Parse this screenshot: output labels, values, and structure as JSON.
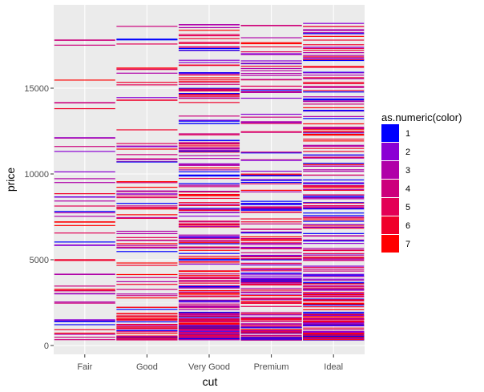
{
  "chart_data": {
    "type": "tile",
    "xlabel": "cut",
    "ylabel": "price",
    "categories": [
      "Fair",
      "Good",
      "Very Good",
      "Premium",
      "Ideal"
    ],
    "ylim": [
      -500,
      19300
    ],
    "yticks": [
      0,
      5000,
      10000,
      15000
    ],
    "ytick_labels": [
      "0",
      "5000",
      "10000",
      "15000"
    ],
    "grid": true,
    "legend": {
      "title": "as.numeric(color)",
      "placement": "right",
      "levels": [
        {
          "label": "1",
          "color": "#0000ff"
        },
        {
          "label": "2",
          "color": "#8a00d4"
        },
        {
          "label": "3",
          "color": "#b000a8"
        },
        {
          "label": "4",
          "color": "#cc007c"
        },
        {
          "label": "5",
          "color": "#e30055"
        },
        {
          "label": "6",
          "color": "#f0002a"
        },
        {
          "label": "7",
          "color": "#ff0000"
        }
      ]
    },
    "price_range_by_cut": {
      "Fair": [
        337,
        18574
      ],
      "Good": [
        327,
        18788
      ],
      "Very Good": [
        336,
        18818
      ],
      "Premium": [
        326,
        18823
      ],
      "Ideal": [
        326,
        18806
      ]
    },
    "sample_points": [
      {
        "cut": "Fair",
        "price": 17800,
        "color": 4
      },
      {
        "cut": "Fair",
        "price": 14150,
        "color": 4
      },
      {
        "cut": "Fair",
        "price": 7200,
        "color": 7
      },
      {
        "cut": "Fair",
        "price": 5850,
        "color": 2
      },
      {
        "cut": "Fair",
        "price": 4150,
        "color": 3
      },
      {
        "cut": "Fair",
        "price": 3200,
        "color": 5
      },
      {
        "cut": "Fair",
        "price": 1400,
        "color": 1
      },
      {
        "cut": "Good",
        "price": 17850,
        "color": 1
      },
      {
        "cut": "Good",
        "price": 16100,
        "color": 5
      },
      {
        "cut": "Good",
        "price": 14300,
        "color": 6
      },
      {
        "cut": "Good",
        "price": 10850,
        "color": 3
      },
      {
        "cut": "Good",
        "price": 9000,
        "color": 3
      },
      {
        "cut": "Very Good",
        "price": 18700,
        "color": 3
      },
      {
        "cut": "Very Good",
        "price": 11950,
        "color": 1
      },
      {
        "cut": "Very Good",
        "price": 1300,
        "color": 7
      },
      {
        "cut": "Premium",
        "price": 18650,
        "color": 4
      },
      {
        "cut": "Premium",
        "price": 17000,
        "color": 2
      },
      {
        "cut": "Premium",
        "price": 10800,
        "color": 2
      },
      {
        "cut": "Premium",
        "price": 9900,
        "color": 1
      },
      {
        "cut": "Ideal",
        "price": 18400,
        "color": 3
      },
      {
        "cut": "Ideal",
        "price": 16750,
        "color": 2
      },
      {
        "cut": "Ideal",
        "price": 13700,
        "color": 1
      },
      {
        "cut": "Ideal",
        "price": 9300,
        "color": 5
      }
    ]
  }
}
